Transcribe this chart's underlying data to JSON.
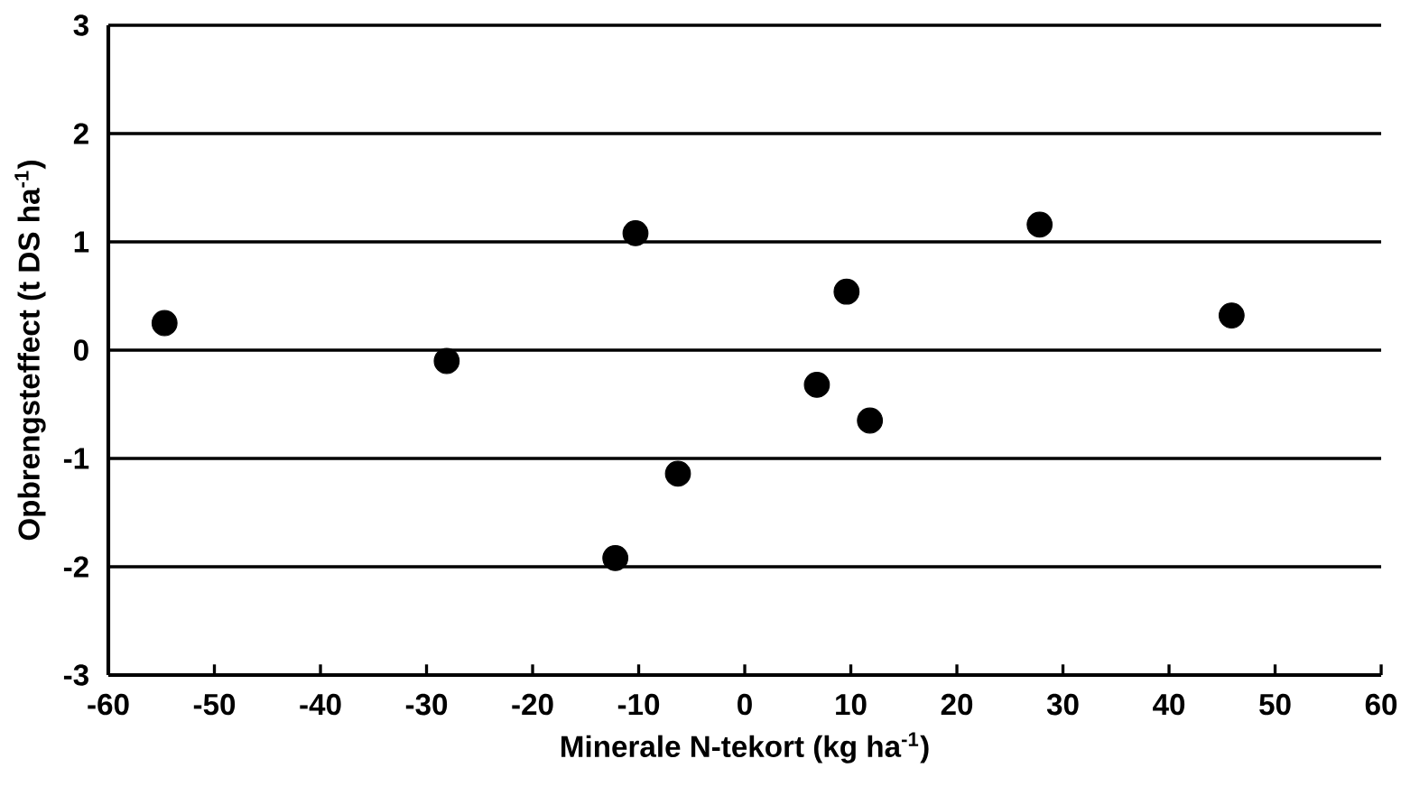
{
  "chart_data": {
    "type": "scatter",
    "xlabel": "Minerale N-tekort (kg ha$^{-1}$)",
    "ylabel": "Opbrengsteffect  (t DS ha$^{-1}$)",
    "x": [
      -54.7,
      -28.1,
      -10.3,
      -6.3,
      -12.2,
      9.6,
      6.8,
      11.8,
      27.8,
      45.9
    ],
    "values": [
      0.25,
      -0.1,
      1.08,
      -1.14,
      -1.92,
      0.54,
      -0.32,
      -0.65,
      1.16,
      0.32
    ],
    "color": "#000000",
    "marker": "circle",
    "grid": "y",
    "xlim": [
      -60,
      60
    ],
    "xticks": [
      -60,
      -50,
      -40,
      -30,
      -20,
      -10,
      0,
      10,
      20,
      30,
      40,
      50,
      60
    ],
    "ylim": [
      -3,
      3
    ],
    "yticks": [
      -3,
      -2,
      -1,
      0,
      1,
      2,
      3
    ]
  }
}
